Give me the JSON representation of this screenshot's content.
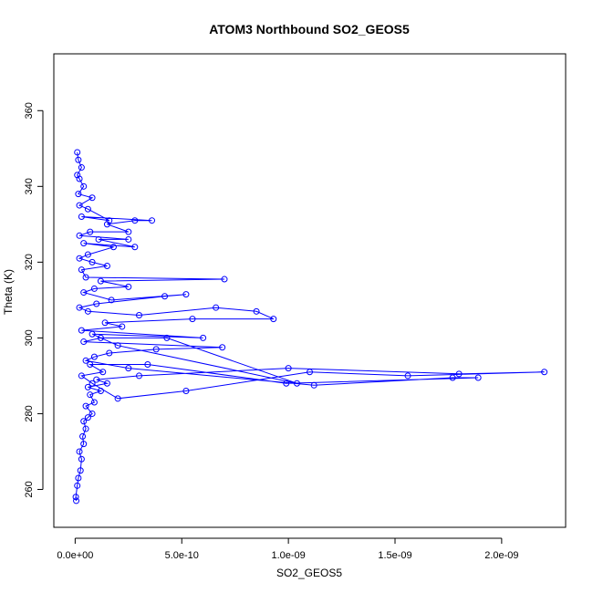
{
  "chart_data": {
    "type": "line",
    "title": "ATOM3 Northbound SO2_GEOS5",
    "xlabel": "SO2_GEOS5",
    "ylabel": "Theta (K)",
    "xlim": [
      -1e-10,
      2.3e-09
    ],
    "ylim": [
      250,
      375
    ],
    "x_ticks": [
      0,
      5e-10,
      1e-09,
      1.5e-09,
      2e-09
    ],
    "x_tick_labels": [
      "0.0e+00",
      "5.0e-10",
      "1.0e-09",
      "1.5e-09",
      "2.0e-09"
    ],
    "y_ticks": [
      260,
      280,
      300,
      320,
      340,
      360
    ],
    "y_tick_labels": [
      "260",
      "280",
      "300",
      "320",
      "340",
      "360"
    ],
    "grid": false,
    "series": [
      {
        "color": "#0000ff",
        "marker": "open-circle",
        "points": [
          [
            5e-12,
            257
          ],
          [
            3e-12,
            258
          ],
          [
            1e-11,
            261
          ],
          [
            1.5e-11,
            263
          ],
          [
            2.5e-11,
            265
          ],
          [
            3e-11,
            268
          ],
          [
            2e-11,
            270
          ],
          [
            4e-11,
            272
          ],
          [
            3.5e-11,
            274
          ],
          [
            5e-11,
            276
          ],
          [
            4e-11,
            278
          ],
          [
            6e-11,
            279
          ],
          [
            8e-11,
            280
          ],
          [
            5e-11,
            282
          ],
          [
            9e-11,
            283
          ],
          [
            7e-11,
            285
          ],
          [
            1.2e-10,
            286
          ],
          [
            6e-11,
            287
          ],
          [
            1.5e-10,
            288
          ],
          [
            1e-10,
            289
          ],
          [
            3e-10,
            290
          ],
          [
            1e-09,
            292
          ],
          [
            1.8e-09,
            290.5
          ],
          [
            2.2e-09,
            291
          ],
          [
            1.56e-09,
            290
          ],
          [
            1.1e-09,
            291
          ],
          [
            5.2e-10,
            286
          ],
          [
            2e-10,
            284
          ],
          [
            8e-11,
            288
          ],
          [
            3e-11,
            290
          ],
          [
            1.3e-10,
            291
          ],
          [
            7e-11,
            293
          ],
          [
            3.4e-10,
            293
          ],
          [
            9.9e-10,
            288
          ],
          [
            1.89e-09,
            289.5
          ],
          [
            1.77e-09,
            289.5
          ],
          [
            1.12e-09,
            287.5
          ],
          [
            2.5e-10,
            292
          ],
          [
            5e-11,
            294
          ],
          [
            9e-11,
            295
          ],
          [
            1.6e-10,
            296
          ],
          [
            3.8e-10,
            297
          ],
          [
            6.9e-10,
            297.5
          ],
          [
            4e-11,
            299
          ],
          [
            1.2e-10,
            300
          ],
          [
            4.3e-10,
            300
          ],
          [
            1.04e-09,
            288
          ],
          [
            2e-10,
            298
          ],
          [
            8e-11,
            301
          ],
          [
            6e-10,
            300
          ],
          [
            3e-11,
            302
          ],
          [
            2.2e-10,
            303
          ],
          [
            1.4e-10,
            304
          ],
          [
            5.5e-10,
            305
          ],
          [
            9.3e-10,
            305
          ],
          [
            8.5e-10,
            307
          ],
          [
            6.6e-10,
            308
          ],
          [
            3e-10,
            306
          ],
          [
            6e-11,
            307
          ],
          [
            2e-11,
            308
          ],
          [
            1e-10,
            309
          ],
          [
            4.2e-10,
            311
          ],
          [
            5.2e-10,
            311.5
          ],
          [
            1.7e-10,
            310
          ],
          [
            4e-11,
            312
          ],
          [
            9e-11,
            313
          ],
          [
            2.5e-10,
            313.5
          ],
          [
            1.2e-10,
            315
          ],
          [
            7e-10,
            315.5
          ],
          [
            5e-11,
            316
          ],
          [
            3e-11,
            318
          ],
          [
            1.5e-10,
            319
          ],
          [
            8e-11,
            320
          ],
          [
            2e-11,
            321
          ],
          [
            6e-11,
            322
          ],
          [
            1.8e-10,
            324
          ],
          [
            4e-11,
            325
          ],
          [
            2.8e-10,
            324
          ],
          [
            1.1e-10,
            326
          ],
          [
            2.5e-10,
            326
          ],
          [
            2e-11,
            327
          ],
          [
            7e-11,
            328
          ],
          [
            2.5e-10,
            328
          ],
          [
            1.5e-10,
            330
          ],
          [
            2.8e-10,
            331
          ],
          [
            3.6e-10,
            331
          ],
          [
            3e-11,
            332
          ],
          [
            1.6e-10,
            331
          ],
          [
            6e-11,
            334
          ],
          [
            2e-11,
            335
          ],
          [
            8e-11,
            337
          ],
          [
            1.5e-11,
            338
          ],
          [
            4e-11,
            340
          ],
          [
            2e-11,
            342
          ],
          [
            1e-11,
            343
          ],
          [
            3e-11,
            345
          ],
          [
            1.5e-11,
            347
          ],
          [
            1e-11,
            349
          ]
        ]
      }
    ]
  }
}
